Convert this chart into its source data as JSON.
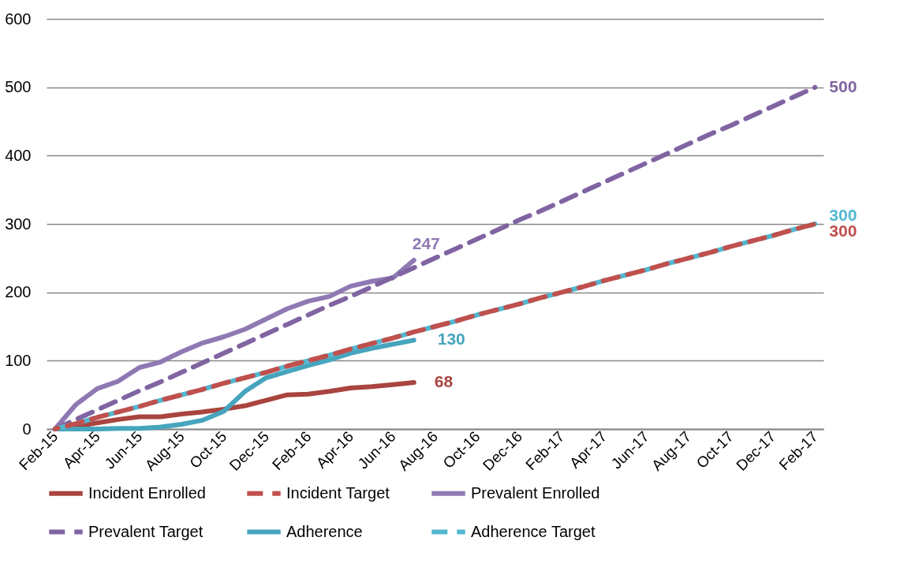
{
  "chart_data": {
    "type": "line",
    "categories": [
      "Feb-15",
      null,
      "Apr-15",
      null,
      "Jun-15",
      null,
      "Aug-15",
      null,
      "Oct-15",
      null,
      "Dec-15",
      null,
      "Feb-16",
      null,
      "Apr-16",
      null,
      "Jun-16",
      null,
      "Aug-16",
      null,
      "Oct-16",
      null,
      "Dec-16",
      null,
      "Feb-17",
      null,
      "Apr-17",
      null,
      "Jun-17",
      null,
      "Aug-17",
      null,
      "Oct-17",
      null,
      "Dec-17",
      null,
      "Feb-17"
    ],
    "series": [
      {
        "name": "Incident Enrolled",
        "color": "#a9443e",
        "line_style": "solid",
        "values": [
          0,
          4,
          9,
          14,
          18,
          18,
          22,
          25,
          29,
          34,
          42,
          50,
          51,
          55,
          60,
          62,
          65,
          68,
          null,
          null,
          null,
          null,
          null,
          null,
          null,
          null,
          null,
          null,
          null,
          null,
          null,
          null,
          null,
          null,
          null,
          null,
          null
        ],
        "value_labels": [
          null,
          null,
          null,
          null,
          null,
          null,
          null,
          null,
          null,
          null,
          null,
          null,
          null,
          null,
          null,
          null,
          null,
          "68",
          null,
          null,
          null,
          null,
          null,
          null,
          null,
          null,
          null,
          null,
          null,
          null,
          null,
          null,
          null,
          null,
          null,
          null,
          null
        ]
      },
      {
        "name": "Incident Target",
        "color": "#c0504d",
        "line_style": "dashed",
        "values": [
          0,
          8,
          17,
          25,
          33,
          42,
          50,
          58,
          67,
          75,
          83,
          92,
          100,
          108,
          117,
          125,
          133,
          142,
          150,
          158,
          167,
          175,
          183,
          192,
          200,
          208,
          217,
          225,
          233,
          242,
          250,
          258,
          267,
          275,
          283,
          292,
          300
        ],
        "value_labels": [
          null,
          null,
          null,
          null,
          null,
          null,
          null,
          null,
          null,
          null,
          null,
          null,
          null,
          null,
          null,
          null,
          null,
          null,
          null,
          null,
          null,
          null,
          null,
          null,
          null,
          null,
          null,
          null,
          null,
          null,
          null,
          null,
          null,
          null,
          null,
          null,
          "300"
        ]
      },
      {
        "name": "Prevalent Enrolled",
        "color": "#8f79b3",
        "line_style": "solid",
        "values": [
          0,
          36,
          59,
          70,
          90,
          98,
          113,
          126,
          135,
          146,
          161,
          176,
          187,
          194,
          209,
          216,
          221,
          247,
          null,
          null,
          null,
          null,
          null,
          null,
          null,
          null,
          null,
          null,
          null,
          null,
          null,
          null,
          null,
          null,
          null,
          null,
          null
        ],
        "value_labels": [
          null,
          null,
          null,
          null,
          null,
          null,
          null,
          null,
          null,
          null,
          null,
          null,
          null,
          null,
          null,
          null,
          null,
          "247",
          null,
          null,
          null,
          null,
          null,
          null,
          null,
          null,
          null,
          null,
          null,
          null,
          null,
          null,
          null,
          null,
          null,
          null,
          null
        ]
      },
      {
        "name": "Prevalent Target",
        "color": "#8064a2",
        "line_style": "dashed",
        "values": [
          0,
          14,
          28,
          42,
          56,
          69,
          83,
          97,
          111,
          125,
          139,
          153,
          167,
          181,
          194,
          208,
          222,
          236,
          250,
          264,
          278,
          292,
          306,
          319,
          333,
          347,
          361,
          375,
          389,
          403,
          417,
          431,
          444,
          458,
          472,
          486,
          500
        ],
        "value_labels": [
          null,
          null,
          null,
          null,
          null,
          null,
          null,
          null,
          null,
          null,
          null,
          null,
          null,
          null,
          null,
          null,
          null,
          null,
          null,
          null,
          null,
          null,
          null,
          null,
          null,
          null,
          null,
          null,
          null,
          null,
          null,
          null,
          null,
          null,
          null,
          null,
          "500"
        ]
      },
      {
        "name": "Adherence",
        "color": "#46a5bd",
        "line_style": "solid",
        "values": [
          0,
          0,
          0,
          1,
          1,
          3,
          7,
          13,
          26,
          55,
          75,
          84,
          93,
          101,
          111,
          118,
          124,
          130,
          null,
          null,
          null,
          null,
          null,
          null,
          null,
          null,
          null,
          null,
          null,
          null,
          null,
          null,
          null,
          null,
          null,
          null,
          null
        ],
        "value_labels": [
          null,
          null,
          null,
          null,
          null,
          null,
          null,
          null,
          null,
          null,
          null,
          null,
          null,
          null,
          null,
          null,
          null,
          "130",
          null,
          null,
          null,
          null,
          null,
          null,
          null,
          null,
          null,
          null,
          null,
          null,
          null,
          null,
          null,
          null,
          null,
          null,
          null
        ]
      },
      {
        "name": "Adherence Target",
        "color": "#53b7d0",
        "line_style": "dashed",
        "values": [
          0,
          8,
          17,
          25,
          33,
          42,
          50,
          58,
          67,
          75,
          83,
          92,
          100,
          108,
          117,
          125,
          133,
          142,
          150,
          158,
          167,
          175,
          183,
          192,
          200,
          208,
          217,
          225,
          233,
          242,
          250,
          258,
          267,
          275,
          283,
          292,
          300
        ],
        "value_labels": [
          null,
          null,
          null,
          null,
          null,
          null,
          null,
          null,
          null,
          null,
          null,
          null,
          null,
          null,
          null,
          null,
          null,
          null,
          null,
          null,
          null,
          null,
          null,
          null,
          null,
          null,
          null,
          null,
          null,
          null,
          null,
          null,
          null,
          null,
          null,
          null,
          "300"
        ]
      }
    ],
    "ylim": [
      0,
      600
    ],
    "yticks": [
      0,
      100,
      200,
      300,
      400,
      500,
      600
    ],
    "grid": "y",
    "legend": "bottom",
    "marker": "none"
  }
}
